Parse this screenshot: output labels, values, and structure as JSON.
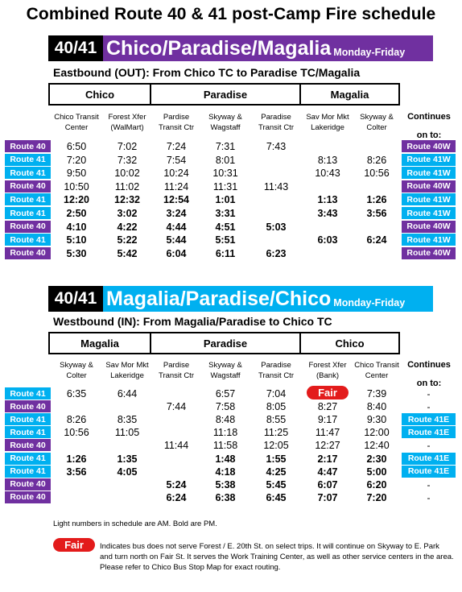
{
  "title": "Combined Route 40 & 41 post-Camp Fire schedule",
  "colors": {
    "route40": "#7030a0",
    "route41": "#00b0f0",
    "fair": "#e31b1b"
  },
  "eastbound": {
    "route_num": "40/41",
    "name": "Chico/Paradise/Magalia",
    "days": "Monday-Friday",
    "subtitle": "Eastbound (OUT): From  Chico TC to Paradise TC/Magalia",
    "zones": [
      "Chico",
      "Paradise",
      "Magalia"
    ],
    "stops": [
      [
        "Chico Transit",
        "Center"
      ],
      [
        "Forest Xfer",
        "(WalMart)"
      ],
      [
        "Pardise",
        "Transit Ctr"
      ],
      [
        "Skyway &",
        "Wagstaff"
      ],
      [
        "Paradise",
        "Transit Ctr"
      ],
      [
        "Sav Mor Mkt",
        "Lakeridge"
      ],
      [
        "Skyway &",
        "Colter"
      ]
    ],
    "continues": [
      "Continues",
      "on to:"
    ],
    "rows": [
      {
        "route": "Route 40",
        "times": [
          "6:50",
          "7:02",
          "7:24",
          "7:31",
          "7:43",
          "",
          ""
        ],
        "pm": false,
        "next": "Route 40W"
      },
      {
        "route": "Route 41",
        "times": [
          "7:20",
          "7:32",
          "7:54",
          "8:01",
          "",
          "8:13",
          "8:26"
        ],
        "pm": false,
        "next": "Route 41W"
      },
      {
        "route": "Route 41",
        "times": [
          "9:50",
          "10:02",
          "10:24",
          "10:31",
          "",
          "10:43",
          "10:56"
        ],
        "pm": false,
        "next": "Route 41W"
      },
      {
        "route": "Route 40",
        "times": [
          "10:50",
          "11:02",
          "11:24",
          "11:31",
          "11:43",
          "",
          ""
        ],
        "pm": false,
        "next": "Route 40W"
      },
      {
        "route": "Route 41",
        "times": [
          "12:20",
          "12:32",
          "12:54",
          "1:01",
          "",
          "1:13",
          "1:26"
        ],
        "pm": true,
        "next": "Route 41W"
      },
      {
        "route": "Route 41",
        "times": [
          "2:50",
          "3:02",
          "3:24",
          "3:31",
          "",
          "3:43",
          "3:56"
        ],
        "pm": true,
        "next": "Route 41W"
      },
      {
        "route": "Route 40",
        "times": [
          "4:10",
          "4:22",
          "4:44",
          "4:51",
          "5:03",
          "",
          ""
        ],
        "pm": true,
        "next": "Route 40W"
      },
      {
        "route": "Route 41",
        "times": [
          "5:10",
          "5:22",
          "5:44",
          "5:51",
          "",
          "6:03",
          "6:24"
        ],
        "pm": true,
        "next": "Route 41W"
      },
      {
        "route": "Route 40",
        "times": [
          "5:30",
          "5:42",
          "6:04",
          "6:11",
          "6:23",
          "",
          ""
        ],
        "pm": true,
        "next": "Route 40W"
      }
    ]
  },
  "westbound": {
    "route_num": "40/41",
    "name": "Magalia/Paradise/Chico",
    "days": "Monday-Friday",
    "subtitle": "Westbound (IN): From Magalia/Paradise to Chico TC",
    "zones": [
      "Magalia",
      "Paradise",
      "Chico"
    ],
    "stops": [
      [
        "Skyway &",
        "Colter"
      ],
      [
        "Sav Mor Mkt",
        "Lakeridge"
      ],
      [
        "Pardise",
        "Transit Ctr"
      ],
      [
        "Skyway &",
        "Wagstaff"
      ],
      [
        "Paradise",
        "Transit Ctr"
      ],
      [
        "Forest Xfer",
        "(Bank)"
      ],
      [
        "Chico Transit",
        "Center"
      ]
    ],
    "continues": [
      "Continues",
      "on to:"
    ],
    "rows": [
      {
        "route": "Route 41",
        "times": [
          "6:35",
          "6:44",
          "",
          "6:57",
          "7:04",
          "Fair",
          "7:39"
        ],
        "pm": false,
        "next": "-"
      },
      {
        "route": "Route 40",
        "times": [
          "",
          "",
          "7:44",
          "7:58",
          "8:05",
          "8:27",
          "8:40"
        ],
        "pm": false,
        "next": "-"
      },
      {
        "route": "Route 41",
        "times": [
          "8:26",
          "8:35",
          "",
          "8:48",
          "8:55",
          "9:17",
          "9:30"
        ],
        "pm": false,
        "next": "Route 41E"
      },
      {
        "route": "Route 41",
        "times": [
          "10:56",
          "11:05",
          "",
          "11:18",
          "11:25",
          "11:47",
          "12:00"
        ],
        "pm": false,
        "next": "Route 41E"
      },
      {
        "route": "Route 40",
        "times": [
          "",
          "",
          "11:44",
          "11:58",
          "12:05",
          "12:27",
          "12:40"
        ],
        "pm": false,
        "next": "-"
      },
      {
        "route": "Route 41",
        "times": [
          "1:26",
          "1:35",
          "",
          "1:48",
          "1:55",
          "2:17",
          "2:30"
        ],
        "pm": true,
        "next": "Route 41E"
      },
      {
        "route": "Route 41",
        "times": [
          "3:56",
          "4:05",
          "",
          "4:18",
          "4:25",
          "4:47",
          "5:00"
        ],
        "pm": true,
        "next": "Route 41E"
      },
      {
        "route": "Route 40",
        "times": [
          "",
          "",
          "5:24",
          "5:38",
          "5:45",
          "6:07",
          "6:20"
        ],
        "pm": true,
        "next": "-"
      },
      {
        "route": "Route 40",
        "times": [
          "",
          "",
          "6:24",
          "6:38",
          "6:45",
          "7:07",
          "7:20"
        ],
        "pm": true,
        "next": "-"
      }
    ]
  },
  "note": "Light numbers in schedule are AM. Bold are PM.",
  "fair_label": "Fair",
  "legend": "Indicates bus does not serve Forest / E. 20th St. on select trips. It will continue on Skyway to E. Park and turn north on Fair St. It serves the Work Training Center, as well as other service centers in the area. Please refer to Chico Bus Stop Map for exact routing."
}
